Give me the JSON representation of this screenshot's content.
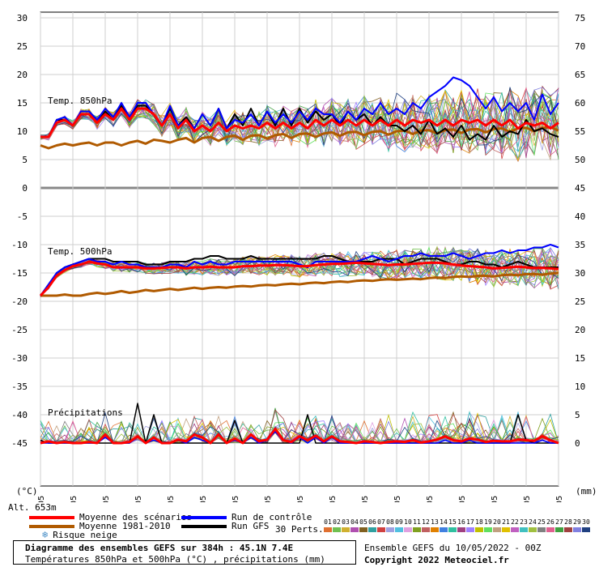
{
  "chart_data": {
    "type": "line",
    "title": "Diagramme des ensembles GEFS sur 384h : 45.1N 7.4E",
    "subtitle": "Températures 850hPa et 500hPa (°C) , précipitations (mm)",
    "left_axis_unit": "(°C)",
    "right_axis_unit": "(mm)",
    "left_ticks": [
      30,
      25,
      20,
      15,
      10,
      5,
      0,
      -5,
      -10,
      -15,
      -20,
      -25,
      -30,
      -35,
      -40,
      -45
    ],
    "right_ticks": [
      75,
      70,
      65,
      60,
      55,
      50,
      45,
      40,
      35,
      30,
      25,
      20,
      15,
      10,
      5,
      0
    ],
    "x_labels": [
      "10/05",
      "11/05",
      "12/05",
      "13/05",
      "14/05",
      "15/05",
      "16/05",
      "17/05",
      "18/05",
      "19/05",
      "20/05",
      "21/05",
      "22/05",
      "23/05",
      "24/05",
      "25/05",
      "26/05"
    ],
    "panel_labels": {
      "t850": "Temp. 850hPa",
      "t500": "Temp. 500hPa",
      "precip": "Précipitations"
    },
    "altitude_label": "Alt. 653m",
    "series": [
      {
        "name": "Moyenne des scénarios",
        "color": "#ff0000",
        "t850": [
          9,
          9,
          11.5,
          12,
          11,
          13,
          13,
          11.5,
          13,
          12,
          14,
          12,
          14,
          14,
          13,
          11,
          13,
          10.5,
          12,
          10,
          11,
          10,
          11.5,
          10,
          11,
          10.5,
          11,
          10.5,
          11.5,
          10.5,
          11.5,
          10.5,
          11.5,
          10.5,
          12,
          11,
          12,
          11,
          12,
          11,
          12,
          11,
          12,
          11,
          12,
          11,
          12,
          11.5,
          12,
          11,
          12,
          11,
          12,
          11.5,
          12,
          11,
          12,
          11,
          12,
          10.5,
          11.5,
          11,
          11.5,
          10.5,
          11.5
        ],
        "t500": [
          -19,
          -17.5,
          -15.5,
          -14.5,
          -13.8,
          -13.5,
          -13,
          -13.3,
          -13.5,
          -14,
          -14,
          -14,
          -14,
          -14.2,
          -14.2,
          -14.1,
          -14,
          -14,
          -14.2,
          -14,
          -14,
          -13.9,
          -14,
          -14,
          -14,
          -13.8,
          -13.8,
          -13.7,
          -13.7,
          -13.6,
          -13.6,
          -13.7,
          -13.8,
          -13.8,
          -13.6,
          -13.5,
          -13.4,
          -13.4,
          -13.3,
          -13.2,
          -13.3,
          -13.4,
          -13.5,
          -13.6,
          -13.5,
          -13.5,
          -13.4,
          -13.3,
          -13.2,
          -13.2,
          -13.3,
          -13.5,
          -13.7,
          -13.8,
          -13.9,
          -14,
          -14.2,
          -14.1,
          -14,
          -13.9,
          -14,
          -14.1,
          -14.1,
          -14.2,
          -14.3
        ],
        "precip": [
          0,
          0.3,
          0,
          0.2,
          0,
          0,
          0.2,
          0,
          1.5,
          0,
          0,
          0.2,
          1.2,
          0,
          1,
          0,
          0,
          0.6,
          0.3,
          1.5,
          1,
          0,
          1.5,
          0,
          0.8,
          0,
          1.5,
          0.3,
          0.6,
          2.5,
          0.5,
          0.2,
          1.2,
          0.5,
          1.3,
          0.3,
          1.2,
          0.3,
          0.2,
          0,
          0.3,
          0.2,
          0,
          0.2,
          0.3,
          0.2,
          0.5,
          0.1,
          0.3,
          0.6,
          1.2,
          0.5,
          0.3,
          0.8,
          0.6,
          0.2,
          0.4,
          0.3,
          0.3,
          0.6,
          0.5,
          0.4,
          1.2,
          0.5,
          0
        ]
      },
      {
        "name": "Moyenne 1981-2010",
        "color": "#b05a00",
        "t850": [
          7.5,
          7,
          7.5,
          7.8,
          7.5,
          7.8,
          8,
          7.5,
          8,
          8,
          7.5,
          8,
          8.3,
          7.8,
          8.5,
          8.3,
          8,
          8.5,
          8.8,
          8,
          8.8,
          9,
          8.3,
          9,
          9.2,
          8.5,
          9.2,
          9.3,
          8.7,
          9.3,
          9.5,
          8.8,
          9.5,
          9.6,
          9,
          9.6,
          9.8,
          9.2,
          9.8,
          9.9,
          9.3,
          9.9,
          10,
          9.4,
          10,
          10.1,
          9.5,
          10.1,
          10.2,
          9.6,
          10.2,
          10.3,
          9.7,
          10.3,
          10.4,
          9.8,
          10.4,
          10.5,
          9.9,
          10.5,
          10.6,
          10,
          10.6,
          10.7,
          10.1
        ],
        "t500": [
          -19,
          -19,
          -19,
          -18.8,
          -19,
          -19,
          -18.7,
          -18.5,
          -18.7,
          -18.5,
          -18.2,
          -18.5,
          -18.3,
          -18,
          -18.2,
          -18,
          -17.8,
          -18,
          -17.8,
          -17.6,
          -17.8,
          -17.6,
          -17.5,
          -17.6,
          -17.4,
          -17.3,
          -17.4,
          -17.2,
          -17.1,
          -17.2,
          -17,
          -16.9,
          -17,
          -16.8,
          -16.7,
          -16.8,
          -16.6,
          -16.5,
          -16.6,
          -16.4,
          -16.3,
          -16.4,
          -16.2,
          -16.1,
          -16.2,
          -16.1,
          -16,
          -16.1,
          -15.9,
          -15.8,
          -15.9,
          -15.7,
          -15.6,
          -15.7,
          -15.5,
          -15.5,
          -15.6,
          -15.4,
          -15.3,
          -15.4,
          -15.2,
          -15.2,
          -15.3,
          -15.1,
          -15
        ],
        "precip": []
      },
      {
        "name": "Run de contrôle",
        "color": "#0000ff",
        "t850": [
          9,
          9,
          12,
          12.5,
          11,
          13.5,
          13.5,
          12,
          14,
          12.5,
          15,
          12.5,
          15,
          15,
          13,
          11,
          14.5,
          11,
          12,
          10.5,
          13,
          11,
          14,
          10.5,
          12,
          11.5,
          13,
          11,
          13.5,
          11.5,
          13,
          11.5,
          13.5,
          12,
          14,
          13,
          13,
          11.5,
          13.5,
          12,
          14,
          13,
          15,
          13,
          14,
          13,
          15,
          14,
          16,
          17,
          18,
          19.5,
          19,
          18,
          16,
          14,
          16,
          13.5,
          15,
          13.5,
          15,
          12,
          16.5,
          13,
          15
        ],
        "t500": [
          -19,
          -17,
          -15,
          -14,
          -13.5,
          -13,
          -12.5,
          -13,
          -13,
          -13.5,
          -13,
          -13.5,
          -13.5,
          -14,
          -14,
          -14,
          -13.5,
          -13.5,
          -14,
          -13,
          -13.5,
          -13,
          -13.5,
          -13.5,
          -13,
          -13,
          -13,
          -13,
          -13,
          -13,
          -13,
          -13,
          -13.5,
          -14,
          -13,
          -13,
          -13,
          -13,
          -13,
          -13,
          -12.5,
          -12,
          -12.5,
          -13,
          -12.5,
          -12,
          -12,
          -11.5,
          -12,
          -12,
          -12,
          -11.5,
          -12,
          -12.5,
          -12,
          -11.5,
          -11.5,
          -11,
          -11.5,
          -11,
          -11,
          -10.5,
          -10.5,
          -10,
          -10.5
        ],
        "precip": [
          0,
          0,
          0,
          0,
          0,
          0,
          0,
          0,
          1,
          0,
          0,
          0,
          1,
          0,
          0.5,
          0,
          0,
          0.5,
          0,
          1,
          0.5,
          0,
          1.5,
          0,
          0.5,
          0,
          1,
          0,
          0.5,
          2,
          0.5,
          0,
          1,
          0,
          1,
          0,
          1,
          0,
          0,
          0,
          0,
          0,
          0,
          0,
          0,
          0,
          0,
          0,
          0,
          0,
          0.5,
          0,
          0,
          0.5,
          0,
          0,
          0,
          0,
          0,
          0,
          0,
          0,
          0.5,
          0,
          0
        ]
      },
      {
        "name": "Run GFS",
        "color": "#000000",
        "t850": [
          9,
          9,
          12,
          12,
          11,
          13,
          13,
          11.5,
          13.5,
          12,
          14.5,
          12,
          14.5,
          14.5,
          13,
          11,
          14,
          11,
          12.5,
          10.5,
          13,
          11,
          14,
          10.5,
          13,
          11,
          14,
          11,
          13.5,
          11,
          14,
          11,
          14,
          11.5,
          13.5,
          12,
          13,
          11,
          13.5,
          12,
          13,
          11,
          12.5,
          11,
          11,
          10,
          11,
          9.5,
          12,
          9.5,
          10.5,
          9,
          11,
          8.5,
          9.5,
          8.5,
          11,
          9,
          10,
          9.5,
          12,
          10,
          10.5,
          9.5,
          9
        ],
        "t500": [
          -19,
          -17.5,
          -15,
          -14,
          -13.5,
          -13,
          -12.5,
          -12.5,
          -12.5,
          -13,
          -13,
          -13,
          -13,
          -13.5,
          -13.5,
          -13.5,
          -13,
          -13,
          -13,
          -12.5,
          -12.5,
          -12,
          -12,
          -12.5,
          -12.5,
          -12.5,
          -12,
          -12.5,
          -12.5,
          -12.5,
          -12.5,
          -12.5,
          -12.5,
          -12.5,
          -12.5,
          -12,
          -12,
          -12.5,
          -13,
          -13,
          -13,
          -13,
          -12.5,
          -12.5,
          -12.5,
          -13.5,
          -13,
          -12.5,
          -12.5,
          -12.5,
          -13,
          -13.5,
          -13.5,
          -13,
          -13,
          -13.5,
          -13.5,
          -14,
          -13.5,
          -13,
          -13.5,
          -14,
          -14,
          -14,
          -14
        ],
        "precip": [
          0.5,
          0,
          0,
          0,
          0,
          0,
          0,
          0,
          0,
          0,
          0,
          0,
          7,
          0,
          5,
          0,
          0,
          0,
          0,
          0,
          0,
          0,
          0,
          0,
          4,
          0,
          0,
          0,
          0,
          0,
          0,
          0,
          0,
          5,
          0,
          0,
          0,
          0,
          0,
          0,
          0,
          0,
          0,
          0,
          0,
          0,
          0,
          0,
          0,
          0,
          0,
          0,
          0,
          0,
          0,
          0,
          0,
          0,
          0,
          5,
          0.5,
          0,
          0,
          0,
          0
        ]
      }
    ],
    "ensemble_count": 30,
    "perturbation_colors": [
      "#e07030",
      "#70c050",
      "#d0b030",
      "#b050b0",
      "#806020",
      "#30a0a0",
      "#d04040",
      "#a0a0e0",
      "#50c0e0",
      "#e0a0e0",
      "#80a020",
      "#c06060",
      "#e08000",
      "#4080e0",
      "#30c0a0",
      "#a04080",
      "#a080ff",
      "#c0c000",
      "#60e060",
      "#c0a080",
      "#e0c000",
      "#c060c0",
      "#40c0c0",
      "#a0c040",
      "#808080",
      "#e06090",
      "#40a040",
      "#a04040",
      "#8080e0",
      "#204080"
    ]
  },
  "legend": {
    "items": [
      {
        "label": "Moyenne des scénarios",
        "color": "#ff0000"
      },
      {
        "label": "Moyenne 1981-2010",
        "color": "#b05a00"
      },
      {
        "label": "Risque neige",
        "color": "#4a90c8"
      },
      {
        "label": "Run de contrôle",
        "color": "#0000ff"
      },
      {
        "label": "Run GFS",
        "color": "#000000"
      }
    ],
    "perts_label": "30 Perts.",
    "pert_numbers": [
      "01",
      "02",
      "03",
      "04",
      "05",
      "06",
      "07",
      "08",
      "09",
      "10",
      "11",
      "12",
      "13",
      "14",
      "15",
      "16",
      "17",
      "18",
      "19",
      "20",
      "21",
      "22",
      "23",
      "24",
      "25",
      "26",
      "27",
      "28",
      "29",
      "30"
    ]
  },
  "footer": {
    "title": "Diagramme des ensembles GEFS sur 384h : 45.1N 7.4E",
    "subtitle": "Températures 850hPa et 500hPa (°C) , précipitations (mm)",
    "run_info": "Ensemble GEFS du 10/05/2022 - 00Z",
    "copyright": "Copyright 2022 Meteociel.fr"
  }
}
